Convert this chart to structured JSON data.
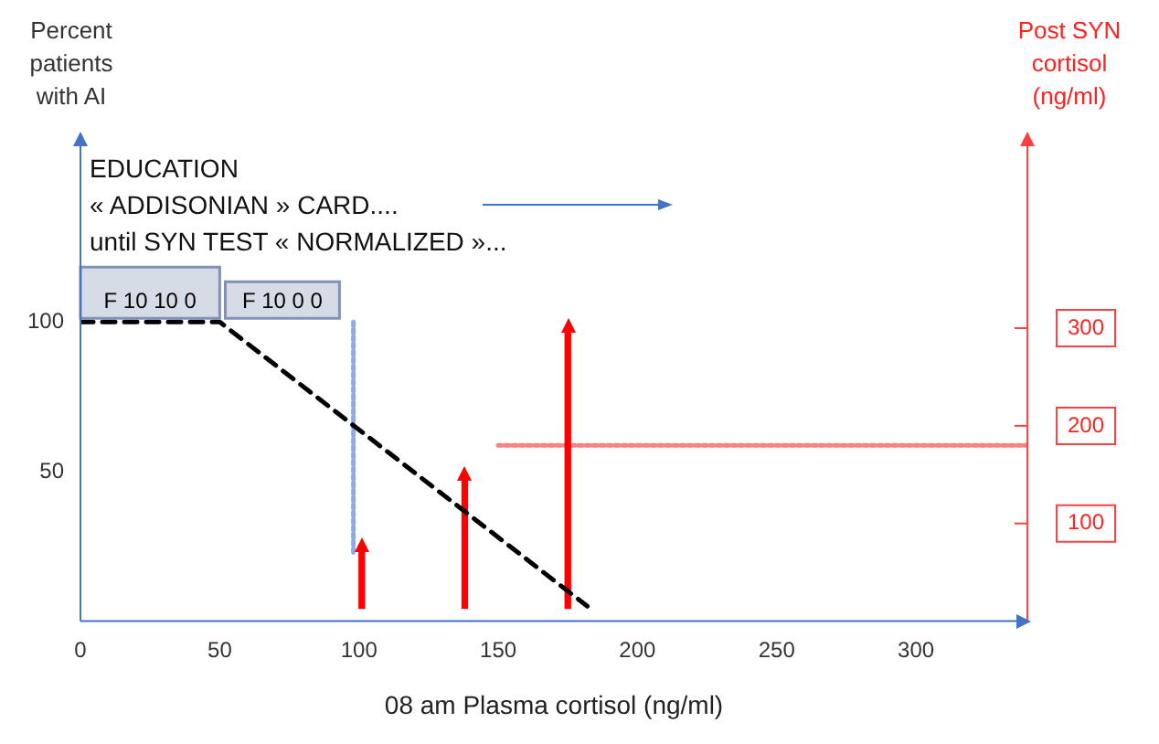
{
  "chart_data": {
    "type": "line",
    "xlabel": "08 am Plasma cortisol (ng/ml)",
    "ylabel": "Percent patients with AI",
    "y2label": "Post SYN cortisol (ng/ml)",
    "annotations": [
      "EDUCATION",
      "« ADDISONIAN » CARD....",
      "until SYN TEST « NORMALIZED »..."
    ],
    "series": [
      {
        "x": [
          0,
          50,
          182
        ],
        "values": [
          100,
          100,
          5
        ],
        "color": "#000000",
        "line_style": "dashed"
      },
      {
        "type": "bar",
        "axis": "y2",
        "x": [
          101,
          138,
          175
        ],
        "base": [
          13,
          13,
          13
        ],
        "values": [
          60,
          133,
          284
        ],
        "color": "#ff0000"
      },
      {
        "axis": "y2",
        "x": [
          150,
          340
        ],
        "values": [
          180,
          180
        ],
        "color": "#ff8080",
        "line_style": "dotted"
      },
      {
        "x": [
          98,
          98
        ],
        "values": [
          100,
          22
        ],
        "color": "#8faadc",
        "line_style": "dotted"
      }
    ],
    "bands": [
      {
        "axis": "x",
        "from": 0,
        "to": 50,
        "label": "F 10 10 0",
        "color": "#d6dce5"
      },
      {
        "axis": "x",
        "from": 52,
        "to": 93,
        "label": "F 10 0 0",
        "color": "#d6dce5"
      }
    ],
    "xlim": [
      0,
      340
    ],
    "xticks": [
      0,
      50,
      100,
      150,
      200,
      250,
      300
    ],
    "ylim": [
      0,
      160
    ],
    "yticks": [
      50,
      100
    ],
    "y2lim": [
      0,
      490
    ],
    "y2ticks": [
      100,
      200,
      300
    ],
    "marker": "none",
    "grid": false,
    "legend": false
  }
}
